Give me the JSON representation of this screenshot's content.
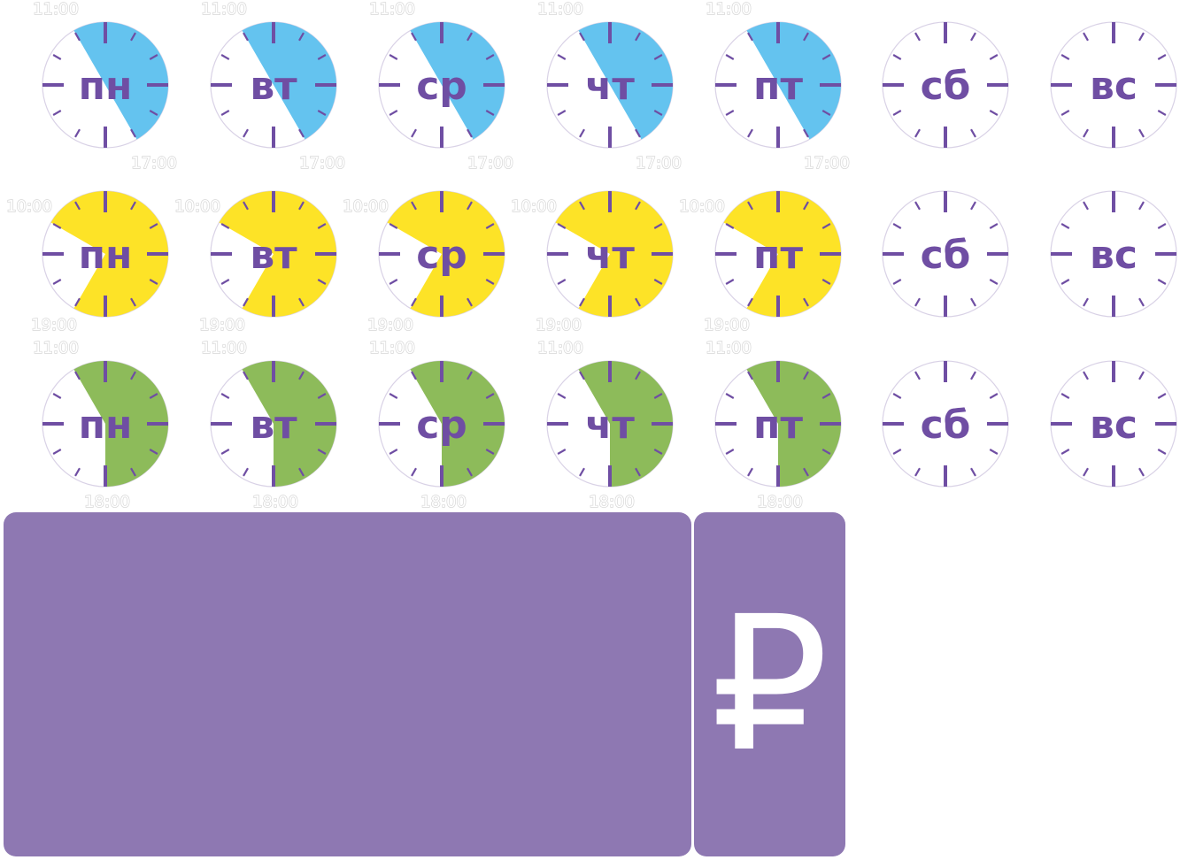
{
  "schedules": [
    {
      "name": "blue-schedule",
      "color": "#64c3ef",
      "days": [
        {
          "day": "пн",
          "open": "11:00",
          "close": "17:00",
          "active": true
        },
        {
          "day": "вт",
          "open": "11:00",
          "close": "17:00",
          "active": true
        },
        {
          "day": "ср",
          "open": "11:00",
          "close": "17:00",
          "active": true
        },
        {
          "day": "чт",
          "open": "11:00",
          "close": "17:00",
          "active": true
        },
        {
          "day": "пт",
          "open": "11:00",
          "close": "17:00",
          "active": true
        },
        {
          "day": "сб",
          "open": "",
          "close": "",
          "active": false
        },
        {
          "day": "вс",
          "open": "",
          "close": "",
          "active": false
        }
      ]
    },
    {
      "name": "yellow-schedule",
      "color": "#fde327",
      "days": [
        {
          "day": "пн",
          "open": "10:00",
          "close": "19:00",
          "active": true
        },
        {
          "day": "вт",
          "open": "10:00",
          "close": "19:00",
          "active": true
        },
        {
          "day": "ср",
          "open": "10:00",
          "close": "19:00",
          "active": true
        },
        {
          "day": "чт",
          "open": "10:00",
          "close": "19:00",
          "active": true
        },
        {
          "day": "пт",
          "open": "10:00",
          "close": "19:00",
          "active": true
        },
        {
          "day": "сб",
          "open": "",
          "close": "",
          "active": false
        },
        {
          "day": "вс",
          "open": "",
          "close": "",
          "active": false
        }
      ]
    },
    {
      "name": "green-schedule",
      "color": "#8dbb5a",
      "days": [
        {
          "day": "пн",
          "open": "11:00",
          "close": "18:00",
          "active": true
        },
        {
          "day": "вт",
          "open": "11:00",
          "close": "18:00",
          "active": true
        },
        {
          "day": "ср",
          "open": "11:00",
          "close": "18:00",
          "active": true
        },
        {
          "day": "чт",
          "open": "11:00",
          "close": "18:00",
          "active": true
        },
        {
          "day": "пт",
          "open": "11:00",
          "close": "18:00",
          "active": true
        },
        {
          "day": "сб",
          "open": "",
          "close": "",
          "active": false
        },
        {
          "day": "вс",
          "open": "",
          "close": "",
          "active": false
        }
      ]
    }
  ],
  "colors": {
    "tick": "#6f4ea3",
    "ticket": "#8e78b2",
    "ring": "#d9d2e6"
  },
  "ticket": {
    "currency_symbol": "₽",
    "icon": "rouble-icon"
  }
}
